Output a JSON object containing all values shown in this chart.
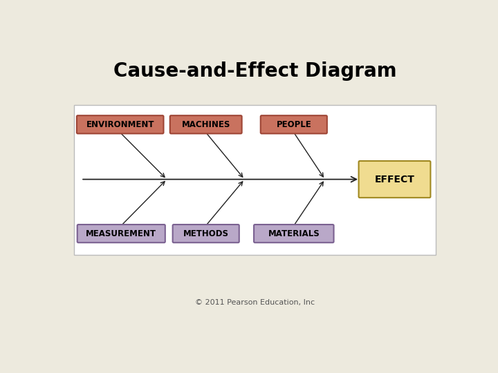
{
  "title": "Cause-and-Effect Diagram",
  "background_color": "#edeade",
  "diagram_bg": "#ffffff",
  "top_labels": [
    "ENVIRONMENT",
    "MACHINES",
    "PEOPLE"
  ],
  "bottom_labels": [
    "MEASUREMENT",
    "METHODS",
    "MATERIALS"
  ],
  "effect_label": "EFFECT",
  "top_box_fill": "#c9725f",
  "top_box_edge": "#9e4535",
  "bottom_box_fill": "#b9a8c8",
  "bottom_box_edge": "#7a6090",
  "effect_box_fill": "#f0dc90",
  "effect_box_edge": "#a08820",
  "arrow_color": "#222222",
  "copyright": "© 2011 Pearson Education, Inc",
  "title_fontsize": 20,
  "label_fontsize": 8.5,
  "effect_fontsize": 10
}
